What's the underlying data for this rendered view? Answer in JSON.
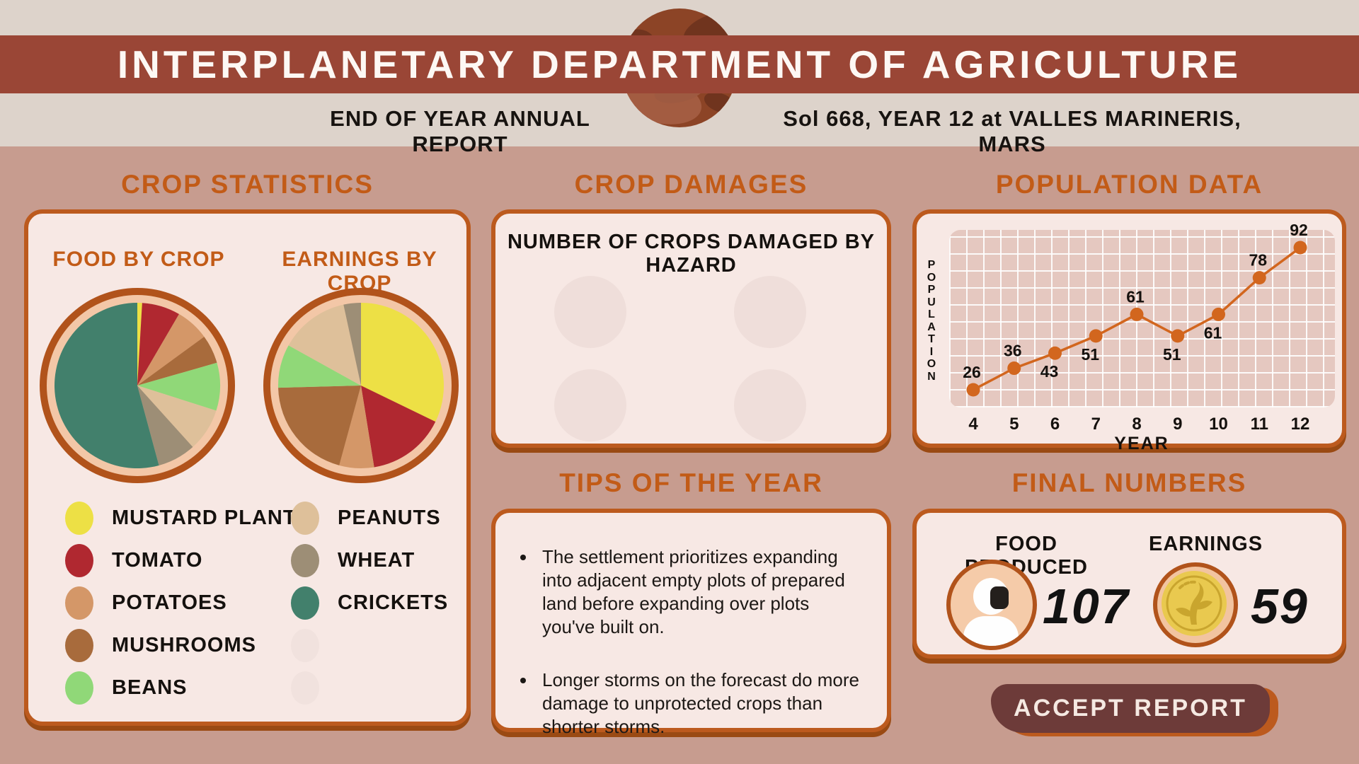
{
  "theme": {
    "background": "#C79C8F",
    "header_strip": "#DDD3CB",
    "banner": "#9A4636",
    "panel_bg": "#F7E8E4",
    "panel_border": "#BC5A1E",
    "title_orange": "#C25B17",
    "accent_orange": "#D2661E",
    "button_maroon": "#6D3B39",
    "plot_bg": "#E5C8C0",
    "planet_base": "#8C4426"
  },
  "header": {
    "title": "INTERPLANETARY DEPARTMENT OF AGRICULTURE",
    "report_label": "END OF YEAR ANNUAL REPORT",
    "location_label": "Sol 668, YEAR 12 at VALLES MARINERIS, MARS"
  },
  "crop_statistics": {
    "section_title": "CROP STATISTICS",
    "food_pie_title": "FOOD BY CROP",
    "earnings_pie_title": "EARNINGS BY CROP",
    "legend_columns": [
      [
        {
          "label": "MUSTARD PLANT",
          "color": "#EDE045"
        },
        {
          "label": "TOMATO",
          "color": "#B02830"
        },
        {
          "label": "POTATOES",
          "color": "#D49768"
        },
        {
          "label": "MUSHROOMS",
          "color": "#A86B3C"
        },
        {
          "label": "BEANS",
          "color": "#90D878"
        }
      ],
      [
        {
          "label": "PEANUTS",
          "color": "#DEC09A"
        },
        {
          "label": "WHEAT",
          "color": "#9D8E76"
        },
        {
          "label": "CRICKETS",
          "color": "#42806C"
        },
        {
          "label": "",
          "color": "#F1E2DE",
          "placeholder": true
        },
        {
          "label": "",
          "color": "#F1E2DE",
          "placeholder": true
        }
      ]
    ]
  },
  "crop_damages": {
    "section_title": "CROP DAMAGES",
    "subtitle": "NUMBER OF CROPS DAMAGED BY HAZARD",
    "hazard_slots": 4
  },
  "population": {
    "section_title": "POPULATION DATA"
  },
  "tips": {
    "section_title": "TIPS OF THE YEAR",
    "items": [
      "The settlement prioritizes expanding into adjacent empty plots of prepared land before expanding over plots you've built on.",
      "Longer storms on the forecast do more damage to unprotected crops than shorter storms."
    ]
  },
  "final_numbers": {
    "section_title": "FINAL NUMBERS",
    "food_label": "FOOD PRODUCED",
    "food_value": "107",
    "food_icon": "astronaut-icon",
    "earnings_label": "EARNINGS",
    "earnings_value": "59",
    "earnings_icon": "coin-icon"
  },
  "actions": {
    "accept_label": "ACCEPT REPORT"
  },
  "chart_data": [
    {
      "type": "pie",
      "title": "FOOD BY CROP",
      "labels": [
        "MUSTARD PLANT",
        "TOMATO",
        "POTATOES",
        "MUSHROOMS",
        "BEANS",
        "PEANUTS",
        "WHEAT",
        "CRICKETS"
      ],
      "values": [
        1,
        8,
        7,
        6,
        10,
        9,
        8,
        58
      ],
      "colors": [
        "#EDE045",
        "#B02830",
        "#D49768",
        "#A86B3C",
        "#90D878",
        "#DEC09A",
        "#9D8E76",
        "#42806C"
      ]
    },
    {
      "type": "pie",
      "title": "EARNINGS BY CROP",
      "labels": [
        "MUSTARD PLANT",
        "TOMATO",
        "POTATOES",
        "MUSHROOMS",
        "BEANS",
        "PEANUTS",
        "WHEAT",
        "CRICKETS"
      ],
      "values": [
        19,
        9,
        4,
        12,
        5,
        8,
        2,
        0
      ],
      "colors": [
        "#EDE045",
        "#B02830",
        "#D49768",
        "#A86B3C",
        "#90D878",
        "#DEC09A",
        "#9D8E76",
        "#42806C"
      ]
    },
    {
      "type": "line",
      "title": "POPULATION DATA",
      "xlabel": "YEAR",
      "ylabel": "POPULATION",
      "x": [
        4,
        5,
        6,
        7,
        8,
        9,
        10,
        11,
        12
      ],
      "y": [
        26,
        36,
        43,
        51,
        61,
        51,
        61,
        78,
        92
      ],
      "label_pos": [
        "above",
        "above",
        "below",
        "below",
        "above",
        "below",
        "below",
        "above",
        "above"
      ],
      "line_color": "#D2661E",
      "grid": true,
      "legend_position": "none"
    }
  ]
}
